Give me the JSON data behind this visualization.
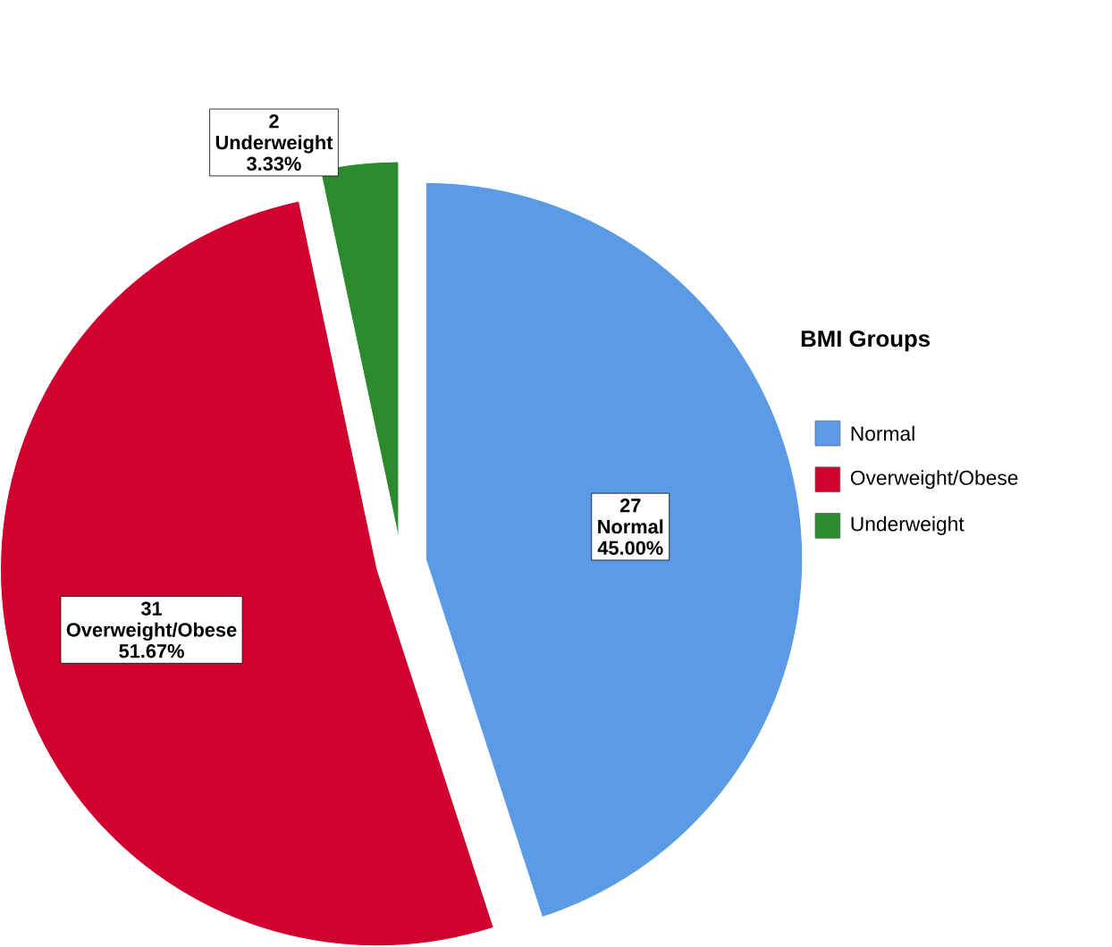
{
  "chart_data": {
    "type": "pie",
    "legend_title": "BMI Groups",
    "categories": [
      "Normal",
      "Overweight/Obese",
      "Underweight"
    ],
    "values": [
      45.0,
      51.67,
      3.33
    ],
    "colors": [
      "#5b9be6",
      "#d0002f",
      "#2b8a2e"
    ],
    "value_labels": [
      "45.00%",
      "51.67%",
      "3.33%"
    ],
    "annotations": [
      {
        "text": "27",
        "x": "Normal"
      },
      {
        "text": "31",
        "x": "Overweight/Obese"
      },
      {
        "text": "2",
        "x": "Underweight"
      }
    ],
    "legend": "right"
  }
}
